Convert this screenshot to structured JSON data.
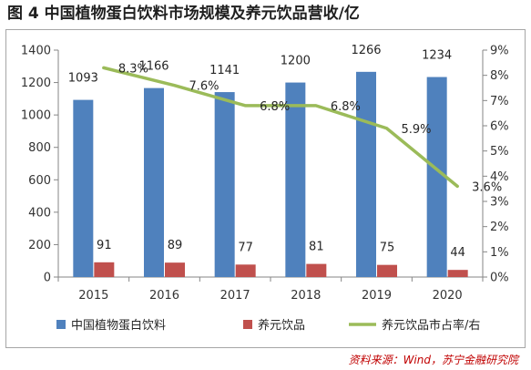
{
  "figure": {
    "title": "图 4  中国植物蛋白饮料市场规模及养元饮品营收/亿",
    "source": "资料来源：Wind，苏宁金融研究院"
  },
  "chart_data": {
    "type": "bar",
    "categories": [
      "2015",
      "2016",
      "2017",
      "2018",
      "2019",
      "2020"
    ],
    "series": [
      {
        "name": "中国植物蛋白饮料",
        "type": "bar",
        "axis": "left",
        "color": "#4f81bd",
        "values": [
          1093,
          1166,
          1141,
          1200,
          1266,
          1234
        ]
      },
      {
        "name": "养元饮品",
        "type": "bar",
        "axis": "left",
        "color": "#c0504d",
        "values": [
          91,
          89,
          77,
          81,
          75,
          44
        ]
      },
      {
        "name": "养元饮品市占率/右",
        "type": "line",
        "axis": "right",
        "color": "#9bbb59",
        "values": [
          8.3,
          7.6,
          6.8,
          6.8,
          5.9,
          3.6
        ],
        "labels": [
          "8.3%",
          "7.6%",
          "6.8%",
          "6.8%",
          "5.9%",
          "3.6%"
        ]
      }
    ],
    "y_left": {
      "min": 0,
      "max": 1400,
      "step": 200,
      "ticks": [
        "0",
        "200",
        "400",
        "600",
        "800",
        "1000",
        "1200",
        "1400"
      ]
    },
    "y_right": {
      "min": 0,
      "max": 9,
      "step": 1,
      "ticks": [
        "0%",
        "1%",
        "2%",
        "3%",
        "4%",
        "5%",
        "6%",
        "7%",
        "8%",
        "9%"
      ]
    },
    "grid": false,
    "legend_position": "bottom"
  }
}
